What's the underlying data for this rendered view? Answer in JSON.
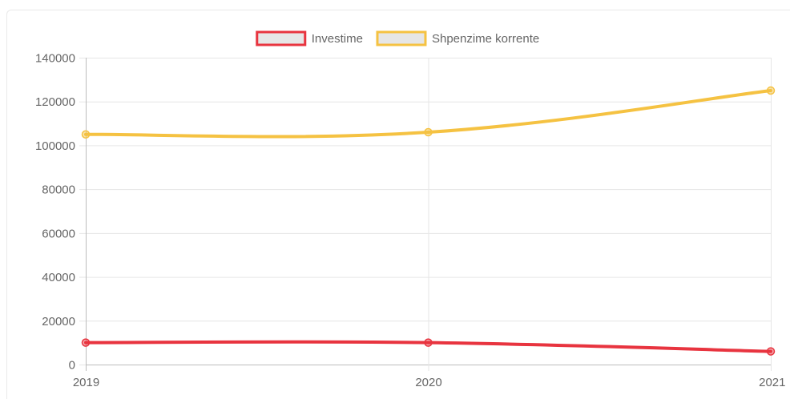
{
  "chart_data": {
    "type": "line",
    "title": "",
    "xlabel": "",
    "ylabel": "",
    "x": [
      "2019",
      "2020",
      "2021"
    ],
    "ylim": [
      0,
      140000
    ],
    "yticks": [
      0,
      20000,
      40000,
      60000,
      80000,
      100000,
      120000,
      140000
    ],
    "yticks_labels": [
      "0",
      "20000",
      "40000",
      "60000",
      "80000",
      "100000",
      "120000",
      "140000"
    ],
    "grid": true,
    "legend_position": "top",
    "smooth": true,
    "series": [
      {
        "name": "Investime",
        "color": "#e8343f",
        "values": [
          10000,
          10000,
          6000
        ]
      },
      {
        "name": "Shpenzime korrente",
        "color": "#f5c242",
        "values": [
          105000,
          106000,
          125000
        ]
      }
    ]
  }
}
